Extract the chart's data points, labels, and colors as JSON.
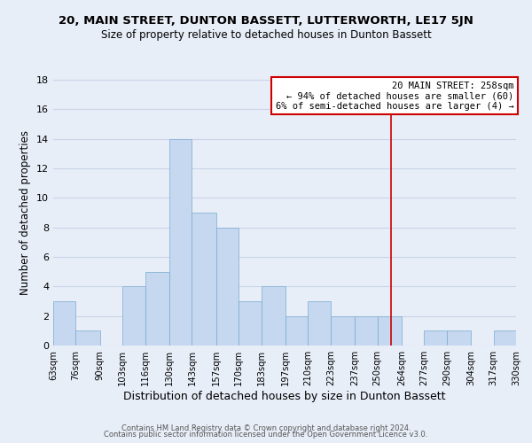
{
  "title": "20, MAIN STREET, DUNTON BASSETT, LUTTERWORTH, LE17 5JN",
  "subtitle": "Size of property relative to detached houses in Dunton Bassett",
  "xlabel": "Distribution of detached houses by size in Dunton Bassett",
  "ylabel": "Number of detached properties",
  "footer_line1": "Contains HM Land Registry data © Crown copyright and database right 2024.",
  "footer_line2": "Contains public sector information licensed under the Open Government Licence v3.0.",
  "bin_edges": [
    63,
    76,
    90,
    103,
    116,
    130,
    143,
    157,
    170,
    183,
    197,
    210,
    223,
    237,
    250,
    264,
    277,
    290,
    304,
    317,
    330
  ],
  "bin_labels": [
    "63sqm",
    "76sqm",
    "90sqm",
    "103sqm",
    "116sqm",
    "130sqm",
    "143sqm",
    "157sqm",
    "170sqm",
    "183sqm",
    "197sqm",
    "210sqm",
    "223sqm",
    "237sqm",
    "250sqm",
    "264sqm",
    "277sqm",
    "290sqm",
    "304sqm",
    "317sqm",
    "330sqm"
  ],
  "counts": [
    3,
    1,
    0,
    4,
    5,
    14,
    9,
    8,
    3,
    4,
    2,
    3,
    2,
    2,
    2,
    0,
    1,
    1,
    0,
    1
  ],
  "bar_color": "#c5d8f0",
  "vline_x": 258,
  "vline_color": "#cc0000",
  "annotation_title": "20 MAIN STREET: 258sqm",
  "annotation_line1": "← 94% of detached houses are smaller (60)",
  "annotation_line2": "6% of semi-detached houses are larger (4) →",
  "annotation_box_color": "#ffffff",
  "annotation_box_edge_color": "#cc0000",
  "ylim": [
    0,
    18
  ],
  "yticks": [
    0,
    2,
    4,
    6,
    8,
    10,
    12,
    14,
    16,
    18
  ],
  "background_color": "#e8eef8",
  "grid_color": "#c8d4e8",
  "title_fontsize": 9.5,
  "subtitle_fontsize": 8.5
}
